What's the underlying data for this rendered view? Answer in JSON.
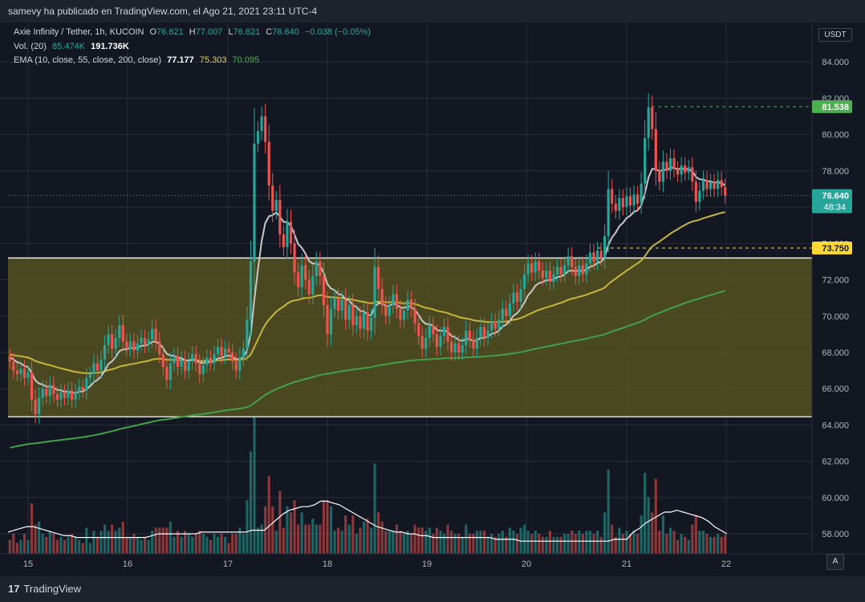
{
  "header": {
    "published_text": "samevy ha publicado en TradingView.com, el Ago 21, 2021 23:11 UTC-4"
  },
  "legend": {
    "symbol": "Axie Infinity / Tether, 1h, KUCOIN",
    "o_label": "O",
    "o_value": "76.621",
    "h_label": "H",
    "h_value": "77.007",
    "l_label": "L",
    "l_value": "76.621",
    "c_label": "C",
    "c_value": "76.640",
    "change": "−0.038 (−0.05%)",
    "vol_label": "Vol. (20)",
    "vol_value": "85.474K",
    "vol_ma": "191.736K",
    "ema_label": "EMA (10, close, 55, close, 200, close)",
    "ema10": "77.177",
    "ema55": "75.303",
    "ema200": "70.095"
  },
  "currency_button": "USDT",
  "auto_button": "A",
  "footer": {
    "brand": "TradingView"
  },
  "colors": {
    "bg": "#131722",
    "grid": "#2a2e39",
    "up": "#26a69a",
    "down": "#ef5350",
    "zone": "#5d5a21",
    "ema10": "#c8c8c8",
    "ema55": "#c9b43a",
    "ema200": "#43a047",
    "last": "#26a69a"
  },
  "chart_data": {
    "type": "candlestick",
    "x_tick_labels": [
      "15",
      "16",
      "17",
      "18",
      "19",
      "20",
      "21",
      "22"
    ],
    "y_tick_labels": [
      "58.000",
      "60.000",
      "62.000",
      "64.000",
      "66.000",
      "68.000",
      "70.000",
      "72.000",
      "74.000",
      "76.000",
      "78.000",
      "80.000",
      "82.000",
      "84.000"
    ],
    "ylim": [
      56.9,
      86.0
    ],
    "price_labels": [
      {
        "text": "81.538",
        "value": 81.538,
        "kind": "green-dashed"
      },
      {
        "text": "73.750",
        "value": 73.75,
        "kind": "yellow-dashed"
      },
      {
        "text": "76.640",
        "value": 76.64,
        "kind": "last",
        "sub": "48:34"
      }
    ],
    "zone": {
      "top": 73.2,
      "bottom": 64.45
    },
    "candles": [
      {
        "o": 67.8,
        "c": 67.5
      },
      {
        "o": 67.5,
        "c": 67.0
      },
      {
        "o": 67.0,
        "c": 66.8
      },
      {
        "o": 66.8,
        "c": 67.1
      },
      {
        "o": 67.1,
        "c": 66.6
      },
      {
        "o": 66.6,
        "c": 66.9
      },
      {
        "o": 66.9,
        "c": 65.4
      },
      {
        "o": 65.4,
        "c": 64.6
      },
      {
        "o": 64.6,
        "c": 65.5
      },
      {
        "o": 65.5,
        "c": 66.0
      },
      {
        "o": 66.0,
        "c": 65.6
      },
      {
        "o": 65.6,
        "c": 66.2
      },
      {
        "o": 66.2,
        "c": 65.7
      },
      {
        "o": 65.7,
        "c": 65.4
      },
      {
        "o": 65.4,
        "c": 65.8
      },
      {
        "o": 65.8,
        "c": 65.5
      },
      {
        "o": 65.5,
        "c": 65.9
      },
      {
        "o": 65.9,
        "c": 65.4
      },
      {
        "o": 65.4,
        "c": 65.8
      },
      {
        "o": 65.8,
        "c": 66.1
      },
      {
        "o": 66.1,
        "c": 65.9
      },
      {
        "o": 65.9,
        "c": 66.6
      },
      {
        "o": 66.6,
        "c": 66.8
      },
      {
        "o": 66.8,
        "c": 67.4
      },
      {
        "o": 67.4,
        "c": 67.0
      },
      {
        "o": 67.0,
        "c": 67.6
      },
      {
        "o": 67.6,
        "c": 68.4
      },
      {
        "o": 68.4,
        "c": 69.0
      },
      {
        "o": 69.0,
        "c": 68.2
      },
      {
        "o": 68.2,
        "c": 68.8
      },
      {
        "o": 68.8,
        "c": 69.5
      },
      {
        "o": 69.5,
        "c": 68.6
      },
      {
        "o": 68.6,
        "c": 68.2
      },
      {
        "o": 68.2,
        "c": 68.6
      },
      {
        "o": 68.6,
        "c": 68.1
      },
      {
        "o": 68.1,
        "c": 68.5
      },
      {
        "o": 68.5,
        "c": 68.8
      },
      {
        "o": 68.8,
        "c": 68.4
      },
      {
        "o": 68.4,
        "c": 68.7
      },
      {
        "o": 68.7,
        "c": 69.3
      },
      {
        "o": 69.3,
        "c": 68.6
      },
      {
        "o": 68.6,
        "c": 67.9
      },
      {
        "o": 67.9,
        "c": 67.2
      },
      {
        "o": 67.2,
        "c": 66.5
      },
      {
        "o": 66.5,
        "c": 67.4
      },
      {
        "o": 67.4,
        "c": 67.8
      },
      {
        "o": 67.8,
        "c": 67.2
      },
      {
        "o": 67.2,
        "c": 67.6
      },
      {
        "o": 67.6,
        "c": 67.0
      },
      {
        "o": 67.0,
        "c": 67.5
      },
      {
        "o": 67.5,
        "c": 67.9
      },
      {
        "o": 67.9,
        "c": 67.4
      },
      {
        "o": 67.4,
        "c": 66.8
      },
      {
        "o": 66.8,
        "c": 67.3
      },
      {
        "o": 67.3,
        "c": 67.7
      },
      {
        "o": 67.7,
        "c": 67.4
      },
      {
        "o": 67.4,
        "c": 67.9
      },
      {
        "o": 67.9,
        "c": 68.3
      },
      {
        "o": 68.3,
        "c": 67.8
      },
      {
        "o": 67.8,
        "c": 68.2
      },
      {
        "o": 68.2,
        "c": 68.0
      },
      {
        "o": 68.0,
        "c": 67.5
      },
      {
        "o": 67.5,
        "c": 67.0
      },
      {
        "o": 67.0,
        "c": 67.7
      },
      {
        "o": 67.7,
        "c": 68.2
      },
      {
        "o": 68.2,
        "c": 69.8
      },
      {
        "o": 69.8,
        "c": 73.0
      },
      {
        "o": 73.0,
        "c": 79.5
      },
      {
        "o": 79.5,
        "c": 80.2
      },
      {
        "o": 80.2,
        "c": 81.0
      },
      {
        "o": 81.0,
        "c": 79.6
      },
      {
        "o": 79.6,
        "c": 77.2
      },
      {
        "o": 77.2,
        "c": 75.8
      },
      {
        "o": 75.8,
        "c": 76.4
      },
      {
        "o": 76.4,
        "c": 74.5
      },
      {
        "o": 74.5,
        "c": 73.8
      },
      {
        "o": 73.8,
        "c": 75.2
      },
      {
        "o": 75.2,
        "c": 74.0
      },
      {
        "o": 74.0,
        "c": 72.4
      },
      {
        "o": 72.4,
        "c": 71.6
      },
      {
        "o": 71.6,
        "c": 72.8
      },
      {
        "o": 72.8,
        "c": 72.0
      },
      {
        "o": 72.0,
        "c": 71.2
      },
      {
        "o": 71.2,
        "c": 72.2
      },
      {
        "o": 72.2,
        "c": 73.0
      },
      {
        "o": 73.0,
        "c": 72.2
      },
      {
        "o": 72.2,
        "c": 70.6
      },
      {
        "o": 70.6,
        "c": 69.0
      },
      {
        "o": 69.0,
        "c": 70.4
      },
      {
        "o": 70.4,
        "c": 71.0
      },
      {
        "o": 71.0,
        "c": 70.3
      },
      {
        "o": 70.3,
        "c": 70.9
      },
      {
        "o": 70.9,
        "c": 69.8
      },
      {
        "o": 69.8,
        "c": 70.6
      },
      {
        "o": 70.6,
        "c": 69.5
      },
      {
        "o": 69.5,
        "c": 70.0
      },
      {
        "o": 70.0,
        "c": 69.3
      },
      {
        "o": 69.3,
        "c": 70.2
      },
      {
        "o": 70.2,
        "c": 69.2
      },
      {
        "o": 69.2,
        "c": 69.9
      },
      {
        "o": 69.9,
        "c": 72.7
      },
      {
        "o": 72.7,
        "c": 71.5
      },
      {
        "o": 71.5,
        "c": 70.6
      },
      {
        "o": 70.6,
        "c": 70.0
      },
      {
        "o": 70.0,
        "c": 70.6
      },
      {
        "o": 70.6,
        "c": 71.2
      },
      {
        "o": 71.2,
        "c": 70.4
      },
      {
        "o": 70.4,
        "c": 69.8
      },
      {
        "o": 69.8,
        "c": 70.3
      },
      {
        "o": 70.3,
        "c": 70.9
      },
      {
        "o": 70.9,
        "c": 70.4
      },
      {
        "o": 70.4,
        "c": 69.6
      },
      {
        "o": 69.6,
        "c": 68.9
      },
      {
        "o": 68.9,
        "c": 68.2
      },
      {
        "o": 68.2,
        "c": 68.8
      },
      {
        "o": 68.8,
        "c": 69.5
      },
      {
        "o": 69.5,
        "c": 69.0
      },
      {
        "o": 69.0,
        "c": 68.3
      },
      {
        "o": 68.3,
        "c": 68.9
      },
      {
        "o": 68.9,
        "c": 69.4
      },
      {
        "o": 69.4,
        "c": 68.6
      },
      {
        "o": 68.6,
        "c": 68.0
      },
      {
        "o": 68.0,
        "c": 68.5
      },
      {
        "o": 68.5,
        "c": 68.0
      },
      {
        "o": 68.0,
        "c": 68.4
      },
      {
        "o": 68.4,
        "c": 69.2
      },
      {
        "o": 69.2,
        "c": 68.7
      },
      {
        "o": 68.7,
        "c": 68.2
      },
      {
        "o": 68.2,
        "c": 68.8
      },
      {
        "o": 68.8,
        "c": 69.4
      },
      {
        "o": 69.4,
        "c": 68.8
      },
      {
        "o": 68.8,
        "c": 69.2
      },
      {
        "o": 69.2,
        "c": 69.7
      },
      {
        "o": 69.7,
        "c": 69.3
      },
      {
        "o": 69.3,
        "c": 69.8
      },
      {
        "o": 69.8,
        "c": 70.4
      },
      {
        "o": 70.4,
        "c": 70.0
      },
      {
        "o": 70.0,
        "c": 70.7
      },
      {
        "o": 70.7,
        "c": 71.3
      },
      {
        "o": 71.3,
        "c": 70.8
      },
      {
        "o": 70.8,
        "c": 71.5
      },
      {
        "o": 71.5,
        "c": 72.3
      },
      {
        "o": 72.3,
        "c": 72.9
      },
      {
        "o": 72.9,
        "c": 72.4
      },
      {
        "o": 72.4,
        "c": 73.0
      },
      {
        "o": 73.0,
        "c": 72.5
      },
      {
        "o": 72.5,
        "c": 72.1
      },
      {
        "o": 72.1,
        "c": 72.5
      },
      {
        "o": 72.5,
        "c": 71.9
      },
      {
        "o": 71.9,
        "c": 72.3
      },
      {
        "o": 72.3,
        "c": 72.7
      },
      {
        "o": 72.7,
        "c": 72.3
      },
      {
        "o": 72.3,
        "c": 72.8
      },
      {
        "o": 72.8,
        "c": 73.3
      },
      {
        "o": 73.3,
        "c": 72.7
      },
      {
        "o": 72.7,
        "c": 72.2
      },
      {
        "o": 72.2,
        "c": 72.8
      },
      {
        "o": 72.8,
        "c": 72.3
      },
      {
        "o": 72.3,
        "c": 72.9
      },
      {
        "o": 72.9,
        "c": 73.5
      },
      {
        "o": 73.5,
        "c": 73.0
      },
      {
        "o": 73.0,
        "c": 73.6
      },
      {
        "o": 73.6,
        "c": 73.2
      },
      {
        "o": 73.2,
        "c": 74.4
      },
      {
        "o": 74.4,
        "c": 77.0
      },
      {
        "o": 77.0,
        "c": 76.2
      },
      {
        "o": 76.2,
        "c": 75.8
      },
      {
        "o": 75.8,
        "c": 76.5
      },
      {
        "o": 76.5,
        "c": 76.0
      },
      {
        "o": 76.0,
        "c": 76.6
      },
      {
        "o": 76.6,
        "c": 76.1
      },
      {
        "o": 76.1,
        "c": 76.7
      },
      {
        "o": 76.7,
        "c": 76.2
      },
      {
        "o": 76.2,
        "c": 77.3
      },
      {
        "o": 77.3,
        "c": 79.8
      },
      {
        "o": 79.8,
        "c": 81.5
      },
      {
        "o": 81.5,
        "c": 80.3
      },
      {
        "o": 80.3,
        "c": 78.0
      },
      {
        "o": 78.0,
        "c": 77.4
      },
      {
        "o": 77.4,
        "c": 78.5
      },
      {
        "o": 78.5,
        "c": 78.0
      },
      {
        "o": 78.0,
        "c": 78.7
      },
      {
        "o": 78.7,
        "c": 78.1
      },
      {
        "o": 78.1,
        "c": 77.8
      },
      {
        "o": 77.8,
        "c": 78.3
      },
      {
        "o": 78.3,
        "c": 77.9
      },
      {
        "o": 77.9,
        "c": 78.2
      },
      {
        "o": 78.2,
        "c": 77.4
      },
      {
        "o": 77.4,
        "c": 76.3
      },
      {
        "o": 76.3,
        "c": 76.9
      },
      {
        "o": 76.9,
        "c": 77.5
      },
      {
        "o": 77.5,
        "c": 77.0
      },
      {
        "o": 77.0,
        "c": 77.4
      },
      {
        "o": 77.4,
        "c": 77.0
      },
      {
        "o": 77.0,
        "c": 77.5
      },
      {
        "o": 77.5,
        "c": 77.1
      },
      {
        "o": 77.1,
        "c": 76.64
      }
    ],
    "volume_ma_points": [
      58.1,
      58.2,
      58.3,
      58.4,
      58.4,
      58.3,
      58.2,
      58.1,
      58.0,
      57.9,
      57.9,
      57.8,
      57.8,
      57.8,
      57.8,
      57.8,
      57.8,
      57.8,
      57.8,
      57.8,
      57.8,
      57.8,
      57.8,
      57.9,
      58.0,
      58.0,
      58.0,
      58.0,
      58.0,
      58.0,
      58.0,
      58.1,
      58.1,
      58.1,
      58.1,
      58.1,
      58.1,
      58.1,
      58.1,
      58.2,
      58.2,
      58.2,
      58.5,
      58.8,
      59.1,
      59.3,
      59.4,
      59.5,
      59.5,
      59.6,
      59.8,
      59.8,
      59.7,
      59.6,
      59.4,
      59.2,
      59.0,
      58.8,
      58.6,
      58.4,
      58.3,
      58.2,
      58.1,
      58.1,
      58.0,
      58.0,
      57.9,
      57.9,
      57.8,
      57.8,
      57.8,
      57.8,
      57.8,
      57.8,
      57.8,
      57.8,
      57.8,
      57.8,
      57.7,
      57.7,
      57.7,
      57.7,
      57.6,
      57.6,
      57.6,
      57.6,
      57.6,
      57.6,
      57.6,
      57.6,
      57.6,
      57.6,
      57.6,
      57.6,
      57.6,
      57.6,
      57.6,
      57.7,
      57.7,
      57.7,
      58.1,
      58.3,
      58.6,
      58.8,
      59.0,
      59.2,
      59.2,
      59.3,
      59.2,
      59.1,
      59.0,
      58.9,
      58.7,
      58.4,
      58.2,
      58.0
    ]
  }
}
